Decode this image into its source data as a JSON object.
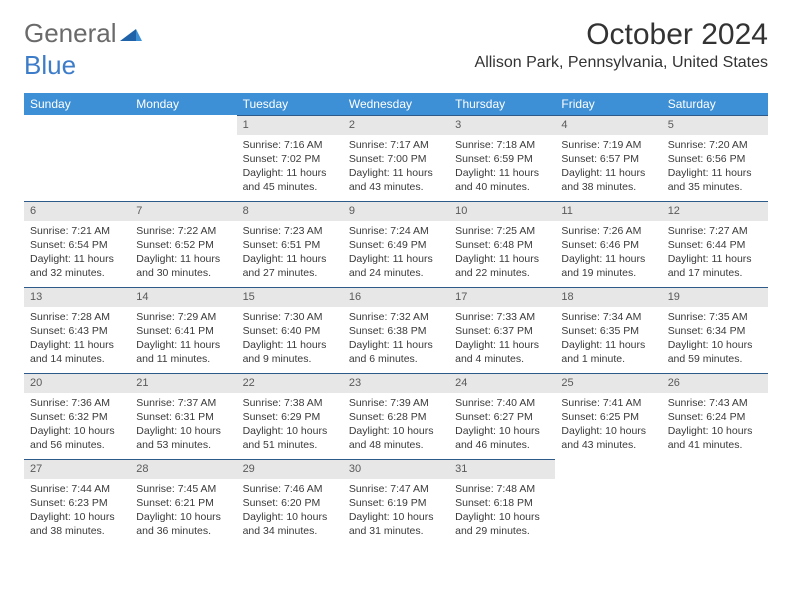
{
  "brand": {
    "part1": "General",
    "part2": "Blue"
  },
  "title": "October 2024",
  "location": "Allison Park, Pennsylvania, United States",
  "colors": {
    "header_bg": "#3d8fd6",
    "header_text": "#ffffff",
    "daynum_bg": "#e7e7e7",
    "rule": "#2e5a8a",
    "text": "#333333",
    "brand_gray": "#6a6a6a",
    "brand_blue": "#3d7cc9"
  },
  "weekdays": [
    "Sunday",
    "Monday",
    "Tuesday",
    "Wednesday",
    "Thursday",
    "Friday",
    "Saturday"
  ],
  "weeks": [
    [
      null,
      null,
      {
        "n": "1",
        "sr": "7:16 AM",
        "ss": "7:02 PM",
        "dl": "11 hours and 45 minutes."
      },
      {
        "n": "2",
        "sr": "7:17 AM",
        "ss": "7:00 PM",
        "dl": "11 hours and 43 minutes."
      },
      {
        "n": "3",
        "sr": "7:18 AM",
        "ss": "6:59 PM",
        "dl": "11 hours and 40 minutes."
      },
      {
        "n": "4",
        "sr": "7:19 AM",
        "ss": "6:57 PM",
        "dl": "11 hours and 38 minutes."
      },
      {
        "n": "5",
        "sr": "7:20 AM",
        "ss": "6:56 PM",
        "dl": "11 hours and 35 minutes."
      }
    ],
    [
      {
        "n": "6",
        "sr": "7:21 AM",
        "ss": "6:54 PM",
        "dl": "11 hours and 32 minutes."
      },
      {
        "n": "7",
        "sr": "7:22 AM",
        "ss": "6:52 PM",
        "dl": "11 hours and 30 minutes."
      },
      {
        "n": "8",
        "sr": "7:23 AM",
        "ss": "6:51 PM",
        "dl": "11 hours and 27 minutes."
      },
      {
        "n": "9",
        "sr": "7:24 AM",
        "ss": "6:49 PM",
        "dl": "11 hours and 24 minutes."
      },
      {
        "n": "10",
        "sr": "7:25 AM",
        "ss": "6:48 PM",
        "dl": "11 hours and 22 minutes."
      },
      {
        "n": "11",
        "sr": "7:26 AM",
        "ss": "6:46 PM",
        "dl": "11 hours and 19 minutes."
      },
      {
        "n": "12",
        "sr": "7:27 AM",
        "ss": "6:44 PM",
        "dl": "11 hours and 17 minutes."
      }
    ],
    [
      {
        "n": "13",
        "sr": "7:28 AM",
        "ss": "6:43 PM",
        "dl": "11 hours and 14 minutes."
      },
      {
        "n": "14",
        "sr": "7:29 AM",
        "ss": "6:41 PM",
        "dl": "11 hours and 11 minutes."
      },
      {
        "n": "15",
        "sr": "7:30 AM",
        "ss": "6:40 PM",
        "dl": "11 hours and 9 minutes."
      },
      {
        "n": "16",
        "sr": "7:32 AM",
        "ss": "6:38 PM",
        "dl": "11 hours and 6 minutes."
      },
      {
        "n": "17",
        "sr": "7:33 AM",
        "ss": "6:37 PM",
        "dl": "11 hours and 4 minutes."
      },
      {
        "n": "18",
        "sr": "7:34 AM",
        "ss": "6:35 PM",
        "dl": "11 hours and 1 minute."
      },
      {
        "n": "19",
        "sr": "7:35 AM",
        "ss": "6:34 PM",
        "dl": "10 hours and 59 minutes."
      }
    ],
    [
      {
        "n": "20",
        "sr": "7:36 AM",
        "ss": "6:32 PM",
        "dl": "10 hours and 56 minutes."
      },
      {
        "n": "21",
        "sr": "7:37 AM",
        "ss": "6:31 PM",
        "dl": "10 hours and 53 minutes."
      },
      {
        "n": "22",
        "sr": "7:38 AM",
        "ss": "6:29 PM",
        "dl": "10 hours and 51 minutes."
      },
      {
        "n": "23",
        "sr": "7:39 AM",
        "ss": "6:28 PM",
        "dl": "10 hours and 48 minutes."
      },
      {
        "n": "24",
        "sr": "7:40 AM",
        "ss": "6:27 PM",
        "dl": "10 hours and 46 minutes."
      },
      {
        "n": "25",
        "sr": "7:41 AM",
        "ss": "6:25 PM",
        "dl": "10 hours and 43 minutes."
      },
      {
        "n": "26",
        "sr": "7:43 AM",
        "ss": "6:24 PM",
        "dl": "10 hours and 41 minutes."
      }
    ],
    [
      {
        "n": "27",
        "sr": "7:44 AM",
        "ss": "6:23 PM",
        "dl": "10 hours and 38 minutes."
      },
      {
        "n": "28",
        "sr": "7:45 AM",
        "ss": "6:21 PM",
        "dl": "10 hours and 36 minutes."
      },
      {
        "n": "29",
        "sr": "7:46 AM",
        "ss": "6:20 PM",
        "dl": "10 hours and 34 minutes."
      },
      {
        "n": "30",
        "sr": "7:47 AM",
        "ss": "6:19 PM",
        "dl": "10 hours and 31 minutes."
      },
      {
        "n": "31",
        "sr": "7:48 AM",
        "ss": "6:18 PM",
        "dl": "10 hours and 29 minutes."
      },
      null,
      null
    ]
  ],
  "labels": {
    "sunrise": "Sunrise:",
    "sunset": "Sunset:",
    "daylight": "Daylight:"
  }
}
